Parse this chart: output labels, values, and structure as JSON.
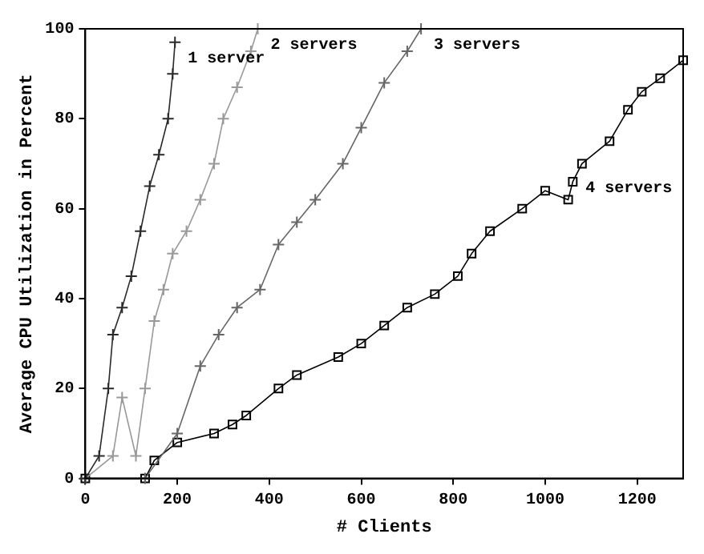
{
  "chart_data": {
    "type": "line",
    "xlabel": "# Clients",
    "ylabel": "Average CPU Utilization in Percent",
    "xlim": [
      0,
      1300
    ],
    "xticks": [
      0,
      200,
      400,
      600,
      800,
      1000,
      1200
    ],
    "ylim": [
      0,
      100
    ],
    "yticks": [
      0,
      20,
      40,
      60,
      80,
      100
    ],
    "grid": false,
    "legend": false,
    "line_style": "solid",
    "series": [
      {
        "name": "1 server",
        "color": "#2a2a2a",
        "marker": "cross",
        "x": [
          0,
          30,
          50,
          60,
          80,
          100,
          120,
          140,
          160,
          180,
          190,
          195
        ],
        "values": [
          0,
          5,
          20,
          32,
          38,
          45,
          55,
          65,
          72,
          80,
          90,
          97
        ]
      },
      {
        "name": "2 servers",
        "color": "#999999",
        "marker": "cross",
        "x": [
          0,
          60,
          80,
          110,
          130,
          150,
          170,
          190,
          220,
          250,
          280,
          300,
          330,
          360,
          375
        ],
        "values": [
          0,
          5,
          18,
          5,
          20,
          35,
          42,
          50,
          55,
          62,
          70,
          80,
          87,
          95,
          100
        ]
      },
      {
        "name": "3 servers",
        "color": "#666666",
        "marker": "cross",
        "x": [
          130,
          200,
          250,
          290,
          330,
          380,
          420,
          460,
          500,
          560,
          600,
          650,
          700,
          730
        ],
        "values": [
          0,
          10,
          25,
          32,
          38,
          42,
          52,
          57,
          62,
          70,
          78,
          88,
          95,
          100
        ]
      },
      {
        "name": "4 servers",
        "color": "#000000",
        "marker": "square",
        "x": [
          0,
          130,
          150,
          200,
          280,
          320,
          350,
          420,
          460,
          550,
          600,
          650,
          700,
          760,
          810,
          840,
          880,
          950,
          1000,
          1050,
          1060,
          1080,
          1140,
          1180,
          1210,
          1250,
          1300
        ],
        "values": [
          0,
          0,
          4,
          8,
          10,
          12,
          14,
          20,
          23,
          27,
          30,
          34,
          38,
          41,
          45,
          50,
          55,
          60,
          64,
          62,
          66,
          70,
          75,
          82,
          86,
          89,
          93
        ]
      }
    ]
  }
}
